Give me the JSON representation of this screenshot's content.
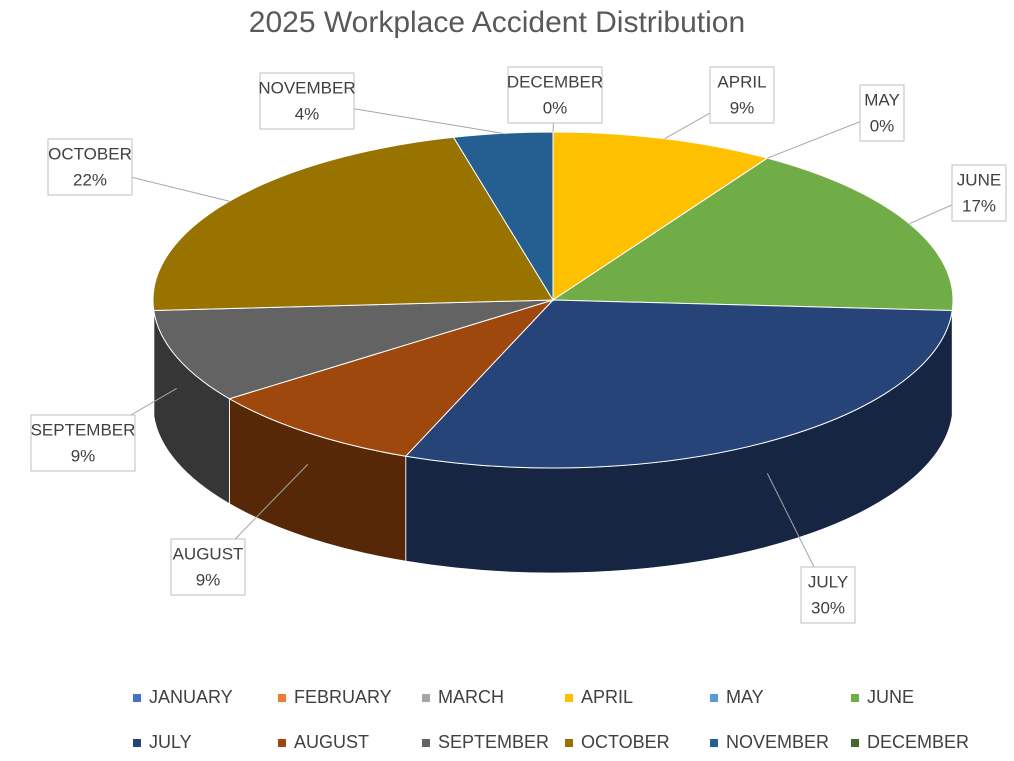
{
  "chart_data": {
    "type": "pie3d",
    "title": "2025 Workplace Accident Distribution",
    "categories": [
      "JANUARY",
      "FEBRUARY",
      "MARCH",
      "APRIL",
      "MAY",
      "JUNE",
      "JULY",
      "AUGUST",
      "SEPTEMBER",
      "OCTOBER",
      "NOVEMBER",
      "DECEMBER"
    ],
    "values": [
      0,
      0,
      0,
      9,
      0,
      17,
      30,
      9,
      9,
      22,
      4,
      0
    ],
    "value_labels": [
      null,
      null,
      null,
      "9%",
      "0%",
      "17%",
      "30%",
      "9%",
      "9%",
      "22%",
      "4%",
      "0%"
    ],
    "colors": [
      "#4472c4",
      "#ed7d31",
      "#a5a5a5",
      "#ffc000",
      "#5b9bd5",
      "#70ad47",
      "#264478",
      "#9e480e",
      "#636363",
      "#997300",
      "#255e91",
      "#43682b"
    ],
    "legend": "bottom"
  }
}
